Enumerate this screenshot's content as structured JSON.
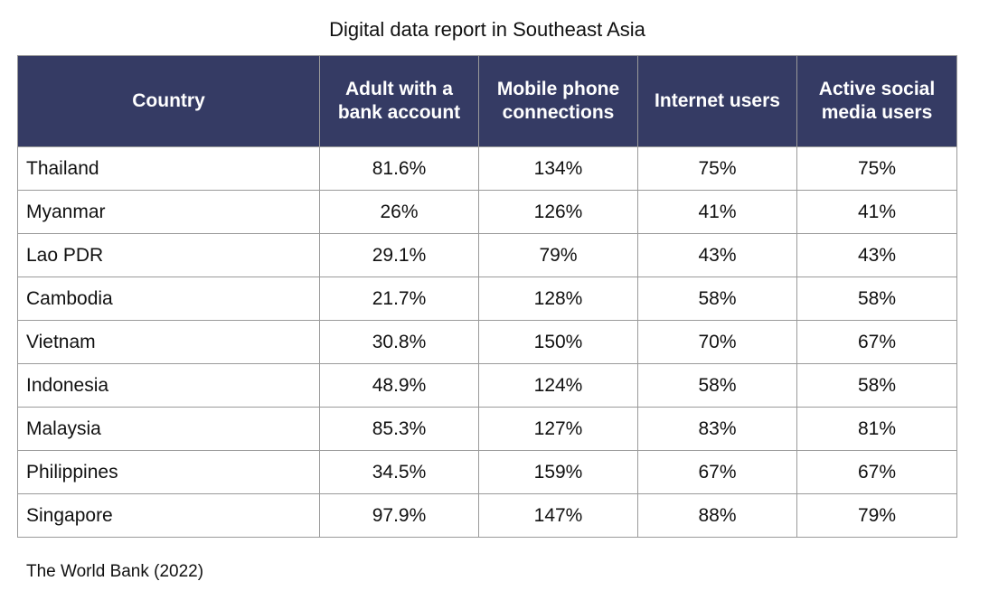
{
  "chart_data": {
    "type": "table",
    "title": "Digital data report in Southeast Asia",
    "columns": [
      "Country",
      "Adult with a bank account",
      "Mobile phone connections",
      "Internet users",
      "Active social media users"
    ],
    "rows": [
      [
        "Thailand",
        "81.6%",
        "134%",
        "75%",
        "75%"
      ],
      [
        "Myanmar",
        "26%",
        "126%",
        "41%",
        "41%"
      ],
      [
        "Lao PDR",
        "29.1%",
        "79%",
        "43%",
        "43%"
      ],
      [
        "Cambodia",
        "21.7%",
        "128%",
        "58%",
        "58%"
      ],
      [
        "Vietnam",
        "30.8%",
        "150%",
        "70%",
        "67%"
      ],
      [
        "Indonesia",
        "48.9%",
        "124%",
        "58%",
        "58%"
      ],
      [
        "Malaysia",
        "85.3%",
        "127%",
        "83%",
        "81%"
      ],
      [
        "Philippines",
        "34.5%",
        "159%",
        "67%",
        "67%"
      ],
      [
        "Singapore",
        "97.9%",
        "147%",
        "88%",
        "79%"
      ]
    ],
    "source": "The World Bank (2022)",
    "header_color": "#353b64"
  }
}
